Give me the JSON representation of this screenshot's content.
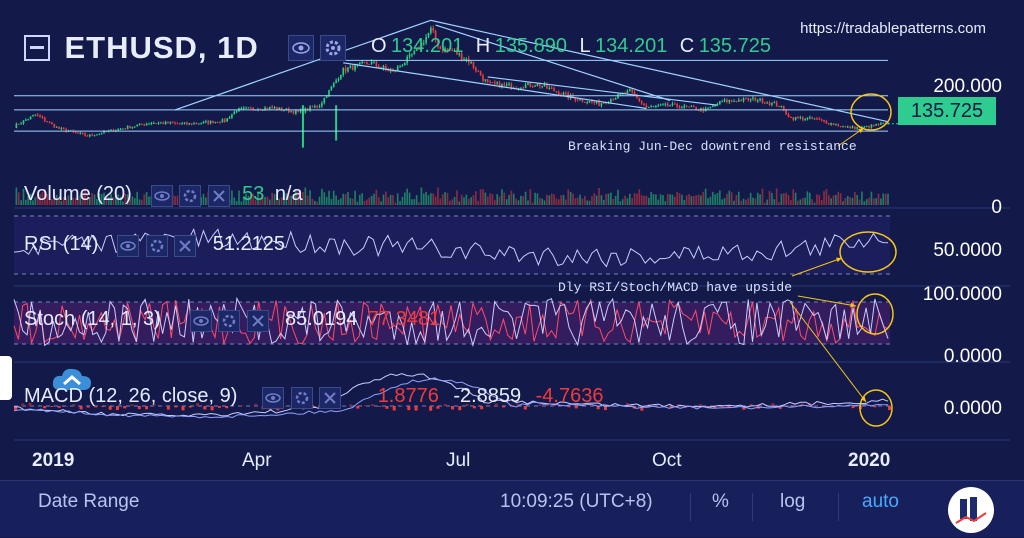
{
  "header": {
    "symbol": "ETHUSD, 1D",
    "ohlc": {
      "o_label": "O",
      "o": "134.201",
      "h_label": "H",
      "h": "135.890",
      "l_label": "L",
      "l": "134.201",
      "c_label": "C",
      "c": "135.725"
    },
    "url": "https://tradablepatterns.com"
  },
  "price_axis": {
    "level": "200.000",
    "last": "135.725"
  },
  "panels": {
    "volume": {
      "name": "Volume (20)",
      "v1": "53",
      "v2": "n/a",
      "axis": "0"
    },
    "rsi": {
      "name": "RSI (14)",
      "value": "51.2125",
      "axis": "50.0000"
    },
    "stoch": {
      "name": "Stoch (14, 1, 3)",
      "k": "85.0194",
      "d": "77.3481",
      "axis_top": "100.0000",
      "axis_bottom": "0.0000"
    },
    "macd": {
      "name": "MACD (12, 26, close, 9)",
      "hist": "1.8776",
      "macd": "-2.8859",
      "signal": "-4.7636",
      "axis": "0.0000"
    }
  },
  "annotations": {
    "resistance": "Breaking Jun-Dec downtrend resistance",
    "upside": "Dly RSI/Stoch/MACD have upside"
  },
  "time_axis": [
    "2019",
    "Apr",
    "Jul",
    "Oct",
    "2020"
  ],
  "bottom_bar": {
    "date_range": "Date Range",
    "clock": "10:09:25 (UTC+8)",
    "percent": "%",
    "log": "log",
    "auto": "auto"
  },
  "colors": {
    "background": "#131a4a",
    "up": "#26d07c",
    "down": "#ef3b3b",
    "line": "#9fd3ff",
    "accent": "#2ecc8f",
    "warning": "#f5c518"
  },
  "chart_data": {
    "type": "candlestick",
    "title": "ETHUSD, 1D",
    "x_range": [
      "2019-01-01",
      "2020-01-05"
    ],
    "ylim": [
      80,
      360
    ],
    "close_points": [
      [
        "2019-01-01",
        130
      ],
      [
        "2019-01-10",
        155
      ],
      [
        "2019-01-20",
        125
      ],
      [
        "2019-02-01",
        110
      ],
      [
        "2019-02-15",
        125
      ],
      [
        "2019-02-28",
        138
      ],
      [
        "2019-03-15",
        135
      ],
      [
        "2019-03-31",
        142
      ],
      [
        "2019-04-05",
        165
      ],
      [
        "2019-04-20",
        170
      ],
      [
        "2019-05-01",
        160
      ],
      [
        "2019-05-10",
        175
      ],
      [
        "2019-05-20",
        250
      ],
      [
        "2019-05-31",
        265
      ],
      [
        "2019-06-10",
        245
      ],
      [
        "2019-06-20",
        290
      ],
      [
        "2019-06-26",
        335
      ],
      [
        "2019-06-30",
        295
      ],
      [
        "2019-07-05",
        290
      ],
      [
        "2019-07-12",
        270
      ],
      [
        "2019-07-20",
        220
      ],
      [
        "2019-08-01",
        215
      ],
      [
        "2019-08-10",
        220
      ],
      [
        "2019-08-25",
        190
      ],
      [
        "2019-09-05",
        178
      ],
      [
        "2019-09-18",
        205
      ],
      [
        "2019-09-25",
        170
      ],
      [
        "2019-10-05",
        175
      ],
      [
        "2019-10-20",
        165
      ],
      [
        "2019-10-27",
        183
      ],
      [
        "2019-11-10",
        188
      ],
      [
        "2019-11-20",
        175
      ],
      [
        "2019-11-25",
        148
      ],
      [
        "2019-12-05",
        146
      ],
      [
        "2019-12-18",
        128
      ],
      [
        "2019-12-25",
        127
      ],
      [
        "2020-01-03",
        135.725
      ]
    ],
    "rsi": {
      "last": 51.2125,
      "reference": 50
    },
    "stoch": {
      "k": 85.0194,
      "d": 77.3481,
      "range": [
        0,
        100
      ]
    },
    "macd": {
      "histogram": 1.8776,
      "macd": -2.8859,
      "signal": -4.7636,
      "zero": 0
    }
  }
}
